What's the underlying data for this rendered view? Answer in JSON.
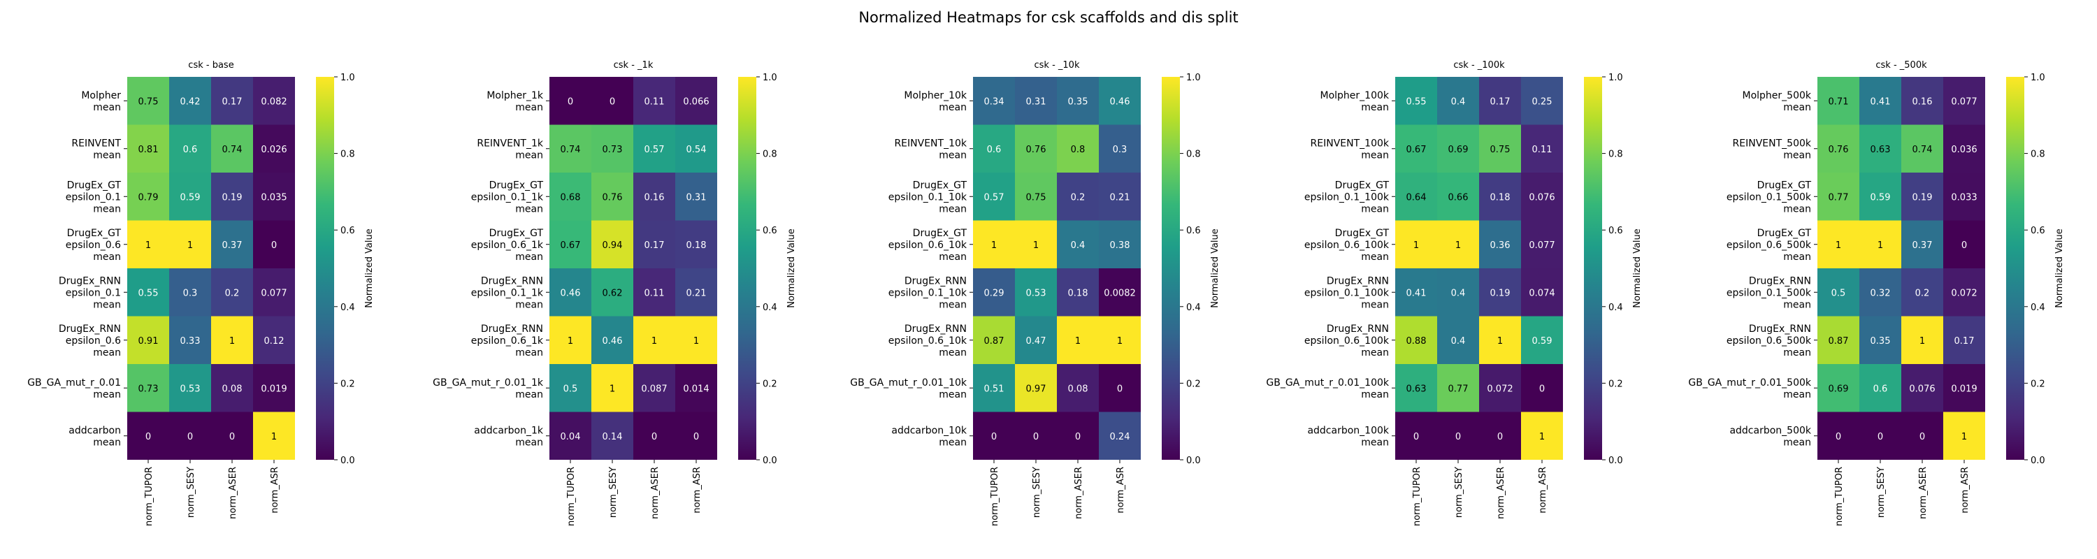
{
  "figure": {
    "title": "Normalized Heatmaps for csk scaffolds and dis split"
  },
  "colormap": {
    "name": "viridis",
    "stops": [
      "#440154",
      "#482878",
      "#3e4989",
      "#31688e",
      "#26828e",
      "#1f9e89",
      "#35b779",
      "#6ece58",
      "#b5de2b",
      "#fde725"
    ]
  },
  "chart_data": [
    {
      "type": "heatmap",
      "title": "csk - base",
      "columns": [
        "norm_TUPOR",
        "norm_SESY",
        "norm_ASER",
        "norm_ASR"
      ],
      "rows": [
        [
          "Molpher",
          "mean"
        ],
        [
          "REINVENT",
          "mean"
        ],
        [
          "DrugEx_GT",
          "epsilon_0.1",
          "mean"
        ],
        [
          "DrugEx_GT",
          "epsilon_0.6",
          "mean"
        ],
        [
          "DrugEx_RNN",
          "epsilon_0.1",
          "mean"
        ],
        [
          "DrugEx_RNN",
          "epsilon_0.6",
          "mean"
        ],
        [
          "GB_GA_mut_r_0.01",
          "mean"
        ],
        [
          "addcarbon",
          "mean"
        ]
      ],
      "values": [
        [
          0.75,
          0.42,
          0.17,
          0.082
        ],
        [
          0.81,
          0.6,
          0.74,
          0.026
        ],
        [
          0.79,
          0.59,
          0.19,
          0.035
        ],
        [
          1,
          1,
          0.37,
          0
        ],
        [
          0.55,
          0.3,
          0.2,
          0.077
        ],
        [
          0.91,
          0.33,
          1,
          0.12
        ],
        [
          0.73,
          0.53,
          0.08,
          0.019
        ],
        [
          0,
          0,
          0,
          1
        ]
      ],
      "colorbar_label": "Normalized Value",
      "colorbar_ticks": [
        "0.0",
        "0.2",
        "0.4",
        "0.6",
        "0.8",
        "1.0"
      ],
      "vlim": [
        0,
        1
      ]
    },
    {
      "type": "heatmap",
      "title": "csk - _1k",
      "columns": [
        "norm_TUPOR",
        "norm_SESY",
        "norm_ASER",
        "norm_ASR"
      ],
      "rows": [
        [
          "Molpher_1k",
          "mean"
        ],
        [
          "REINVENT_1k",
          "mean"
        ],
        [
          "DrugEx_GT",
          "epsilon_0.1_1k",
          "mean"
        ],
        [
          "DrugEx_GT",
          "epsilon_0.6_1k",
          "mean"
        ],
        [
          "DrugEx_RNN",
          "epsilon_0.1_1k",
          "mean"
        ],
        [
          "DrugEx_RNN",
          "epsilon_0.6_1k",
          "mean"
        ],
        [
          "GB_GA_mut_r_0.01_1k",
          "mean"
        ],
        [
          "addcarbon_1k",
          "mean"
        ]
      ],
      "values": [
        [
          0,
          0,
          0.11,
          0.066
        ],
        [
          0.74,
          0.73,
          0.57,
          0.54
        ],
        [
          0.68,
          0.76,
          0.16,
          0.31
        ],
        [
          0.67,
          0.94,
          0.17,
          0.18
        ],
        [
          0.46,
          0.62,
          0.11,
          0.21
        ],
        [
          1,
          0.46,
          1,
          1
        ],
        [
          0.5,
          1,
          0.087,
          0.014
        ],
        [
          0.04,
          0.14,
          0,
          0
        ]
      ],
      "colorbar_label": "Normalized Value",
      "colorbar_ticks": [
        "0.0",
        "0.2",
        "0.4",
        "0.6",
        "0.8",
        "1.0"
      ],
      "vlim": [
        0,
        1
      ]
    },
    {
      "type": "heatmap",
      "title": "csk - _10k",
      "columns": [
        "norm_TUPOR",
        "norm_SESY",
        "norm_ASER",
        "norm_ASR"
      ],
      "rows": [
        [
          "Molpher_10k",
          "mean"
        ],
        [
          "REINVENT_10k",
          "mean"
        ],
        [
          "DrugEx_GT",
          "epsilon_0.1_10k",
          "mean"
        ],
        [
          "DrugEx_GT",
          "epsilon_0.6_10k",
          "mean"
        ],
        [
          "DrugEx_RNN",
          "epsilon_0.1_10k",
          "mean"
        ],
        [
          "DrugEx_RNN",
          "epsilon_0.6_10k",
          "mean"
        ],
        [
          "GB_GA_mut_r_0.01_10k",
          "mean"
        ],
        [
          "addcarbon_10k",
          "mean"
        ]
      ],
      "values": [
        [
          0.34,
          0.31,
          0.35,
          0.46
        ],
        [
          0.6,
          0.76,
          0.8,
          0.3
        ],
        [
          0.57,
          0.75,
          0.2,
          0.21
        ],
        [
          1,
          1,
          0.4,
          0.38
        ],
        [
          0.29,
          0.53,
          0.18,
          0.0082
        ],
        [
          0.87,
          0.47,
          1,
          1
        ],
        [
          0.51,
          0.97,
          0.08,
          0
        ],
        [
          0,
          0,
          0,
          0.24
        ]
      ],
      "colorbar_label": "Normalized Value",
      "colorbar_ticks": [
        "0.0",
        "0.2",
        "0.4",
        "0.6",
        "0.8",
        "1.0"
      ],
      "vlim": [
        0,
        1
      ]
    },
    {
      "type": "heatmap",
      "title": "csk - _100k",
      "columns": [
        "norm_TUPOR",
        "norm_SESY",
        "norm_ASER",
        "norm_ASR"
      ],
      "rows": [
        [
          "Molpher_100k",
          "mean"
        ],
        [
          "REINVENT_100k",
          "mean"
        ],
        [
          "DrugEx_GT",
          "epsilon_0.1_100k",
          "mean"
        ],
        [
          "DrugEx_GT",
          "epsilon_0.6_100k",
          "mean"
        ],
        [
          "DrugEx_RNN",
          "epsilon_0.1_100k",
          "mean"
        ],
        [
          "DrugEx_RNN",
          "epsilon_0.6_100k",
          "mean"
        ],
        [
          "GB_GA_mut_r_0.01_100k",
          "mean"
        ],
        [
          "addcarbon_100k",
          "mean"
        ]
      ],
      "values": [
        [
          0.55,
          0.4,
          0.17,
          0.25
        ],
        [
          0.67,
          0.69,
          0.75,
          0.11
        ],
        [
          0.64,
          0.66,
          0.18,
          0.076
        ],
        [
          1,
          1,
          0.36,
          0.077
        ],
        [
          0.41,
          0.4,
          0.19,
          0.074
        ],
        [
          0.88,
          0.4,
          1,
          0.59
        ],
        [
          0.63,
          0.77,
          0.072,
          0
        ],
        [
          0,
          0,
          0,
          1
        ]
      ],
      "colorbar_label": "Normalized Value",
      "colorbar_ticks": [
        "0.0",
        "0.2",
        "0.4",
        "0.6",
        "0.8",
        "1.0"
      ],
      "vlim": [
        0,
        1
      ]
    },
    {
      "type": "heatmap",
      "title": "csk - _500k",
      "columns": [
        "norm_TUPOR",
        "norm_SESY",
        "norm_ASER",
        "norm_ASR"
      ],
      "rows": [
        [
          "Molpher_500k",
          "mean"
        ],
        [
          "REINVENT_500k",
          "mean"
        ],
        [
          "DrugEx_GT",
          "epsilon_0.1_500k",
          "mean"
        ],
        [
          "DrugEx_GT",
          "epsilon_0.6_500k",
          "mean"
        ],
        [
          "DrugEx_RNN",
          "epsilon_0.1_500k",
          "mean"
        ],
        [
          "DrugEx_RNN",
          "epsilon_0.6_500k",
          "mean"
        ],
        [
          "GB_GA_mut_r_0.01_500k",
          "mean"
        ],
        [
          "addcarbon_500k",
          "mean"
        ]
      ],
      "values": [
        [
          0.71,
          0.41,
          0.16,
          0.077
        ],
        [
          0.76,
          0.63,
          0.74,
          0.036
        ],
        [
          0.77,
          0.59,
          0.19,
          0.033
        ],
        [
          1,
          1,
          0.37,
          0
        ],
        [
          0.5,
          0.32,
          0.2,
          0.072
        ],
        [
          0.87,
          0.35,
          1,
          0.17
        ],
        [
          0.69,
          0.6,
          0.076,
          0.019
        ],
        [
          0,
          0,
          0,
          1
        ]
      ],
      "colorbar_label": "Normalized Value",
      "colorbar_ticks": [
        "0.0",
        "0.2",
        "0.4",
        "0.6",
        "0.8",
        "1.0"
      ],
      "vlim": [
        0,
        1
      ]
    }
  ]
}
